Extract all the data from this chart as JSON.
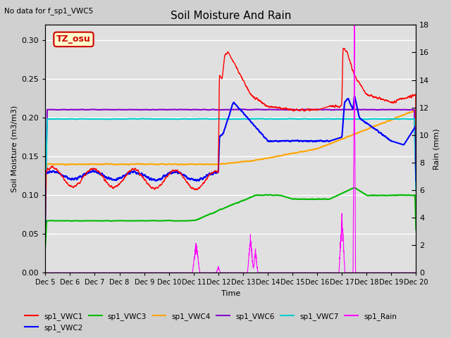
{
  "title": "Soil Moisture And Rain",
  "subtitle": "No data for f_sp1_VWC5",
  "xlabel": "Time",
  "ylabel_left": "Soil Moisture (m3/m3)",
  "ylabel_right": "Rain (mm)",
  "ylim_left": [
    0.0,
    0.32
  ],
  "ylim_right": [
    0,
    18
  ],
  "yticks_left": [
    0.0,
    0.05,
    0.1,
    0.15,
    0.2,
    0.25,
    0.3
  ],
  "yticks_right": [
    0,
    2,
    4,
    6,
    8,
    10,
    12,
    14,
    16,
    18
  ],
  "xtick_labels": [
    "Dec 5",
    "Dec 6",
    "Dec 7",
    "Dec 8",
    "Dec 9",
    "Dec 10",
    "Dec 11",
    "Dec 12",
    "Dec 13",
    "Dec 14",
    "Dec 15",
    "Dec 16",
    "Dec 17",
    "Dec 18",
    "Dec 19",
    "Dec 20"
  ],
  "bg_color": "#d0d0d0",
  "plot_bg_color": "#e0e0e0",
  "vwc1_color": "#ff0000",
  "vwc2_color": "#0000ff",
  "vwc3_color": "#00bb00",
  "vwc4_color": "#ffa500",
  "vwc6_color": "#8800cc",
  "vwc7_color": "#00cccc",
  "rain_color": "#ff00ff",
  "tzbox_facecolor": "#ffffcc",
  "tzbox_edgecolor": "#cc0000",
  "tzbox_text": "TZ_osu"
}
